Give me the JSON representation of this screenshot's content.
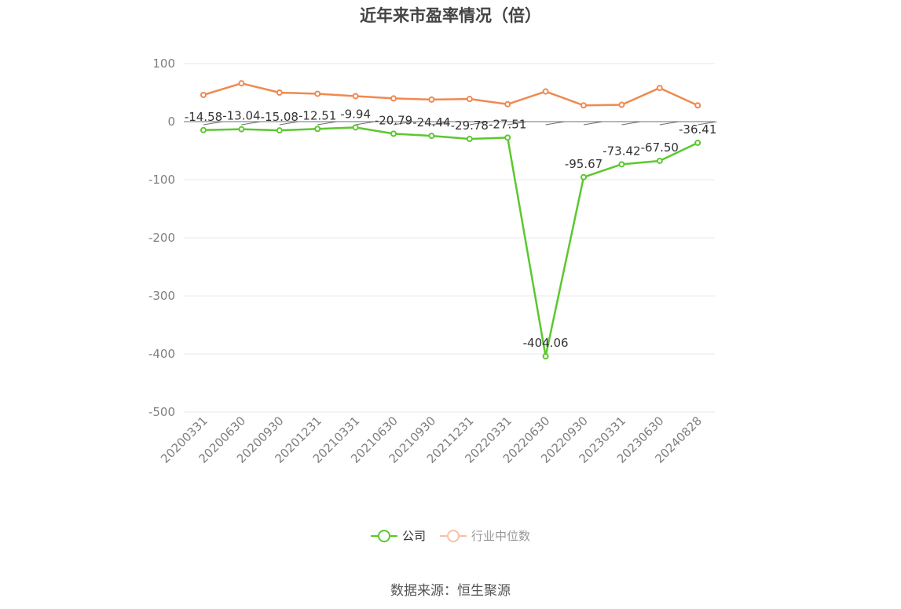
{
  "chart_data": {
    "type": "line",
    "title": "近年来市盈率情况（倍）",
    "categories": [
      "20200331",
      "20200630",
      "20200930",
      "20201231",
      "20210331",
      "20210630",
      "20210930",
      "20211231",
      "20220331",
      "20220630",
      "20220930",
      "20230331",
      "20230630",
      "20240828"
    ],
    "series": [
      {
        "name": "公司",
        "color": "#5bc82e",
        "values": [
          -14.58,
          -13.04,
          -15.08,
          -12.51,
          -9.94,
          -20.79,
          -24.44,
          -29.78,
          -27.51,
          -404.06,
          -95.67,
          -73.42,
          -67.5,
          -36.41
        ],
        "labels": [
          "-14.58",
          "-13.04",
          "-15.08",
          "-12.51",
          "-9.94",
          "-20.79",
          "-24.44",
          "-29.78",
          "-27.51",
          "-404.06",
          "-95.67",
          "-73.42",
          "-67.50",
          "-36.41"
        ]
      },
      {
        "name": "行业中位数",
        "color": "#f0894f",
        "values": [
          46,
          66,
          50,
          48,
          44,
          40,
          38,
          39,
          30,
          52,
          28,
          29,
          58,
          28
        ]
      }
    ],
    "ylim": [
      -500,
      100
    ],
    "yticks": [
      "100",
      "0",
      "-100",
      "-200",
      "-300",
      "-400",
      "-500"
    ],
    "ytick_values": [
      100,
      0,
      -100,
      -200,
      -300,
      -400,
      -500
    ],
    "legend": "bottom-center",
    "grid": true
  },
  "legend_text_color": "#333333",
  "legend_inactive_color": "#999999",
  "source": "数据来源：恒生聚源"
}
